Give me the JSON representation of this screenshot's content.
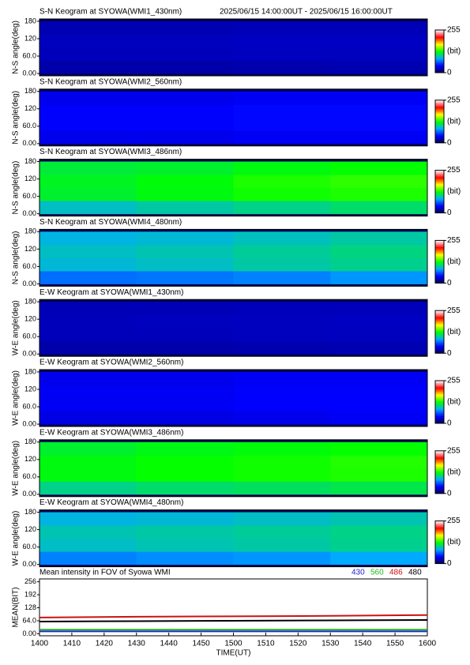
{
  "period": "2025/06/15 14:00:00UT - 2025/06/15 16:00:00UT",
  "chart_data": [
    {
      "type": "heatmap",
      "title": "S-N Keogram at SYOWA(WMI1_430nm)",
      "ylabel": "N-S angle(deg)",
      "xlim": [
        840,
        960
      ],
      "ylim": [
        -8,
        188
      ],
      "yticks": [
        {
          "value": 0,
          "label": "0.00"
        },
        {
          "value": 60,
          "label": "60.0"
        },
        120,
        180
      ],
      "xbins": [
        840,
        870,
        900,
        930,
        960
      ],
      "ybins": [
        0,
        45,
        90,
        135,
        180
      ],
      "values": [
        [
          22,
          22,
          23,
          24
        ],
        [
          26,
          26,
          27,
          27
        ],
        [
          27,
          27,
          28,
          28
        ],
        [
          24,
          24,
          25,
          25
        ]
      ],
      "colormap": [
        "#000050",
        "#0000ff",
        "#00aaff",
        "#00ff00",
        "#ffff00",
        "#ff0000",
        "#ffffff"
      ],
      "clim": [
        0,
        255
      ],
      "cticks": [
        0,
        255
      ],
      "clabel": "(bit)"
    },
    {
      "type": "heatmap",
      "title": "S-N Keogram at SYOWA(WMI2_560nm)",
      "ylabel": "N-S angle(deg)",
      "xlim": [
        840,
        960
      ],
      "ylim": [
        -8,
        188
      ],
      "yticks": [
        {
          "value": 0,
          "label": "0.00"
        },
        {
          "value": 60,
          "label": "60.0"
        },
        120,
        180
      ],
      "xbins": [
        840,
        870,
        900,
        930,
        960
      ],
      "ybins": [
        0,
        45,
        90,
        135,
        180
      ],
      "values": [
        [
          38,
          38,
          40,
          40
        ],
        [
          42,
          42,
          44,
          44
        ],
        [
          42,
          42,
          44,
          44
        ],
        [
          38,
          38,
          40,
          40
        ]
      ],
      "colormap": [
        "#000050",
        "#0000ff",
        "#00aaff",
        "#00ff00",
        "#ffff00",
        "#ff0000",
        "#ffffff"
      ],
      "clim": [
        0,
        255
      ],
      "cticks": [
        0,
        255
      ],
      "clabel": "(bit)"
    },
    {
      "type": "heatmap",
      "title": "S-N Keogram at SYOWA(WMI3_486nm)",
      "ylabel": "N-S angle(deg)",
      "xlim": [
        840,
        960
      ],
      "ylim": [
        -8,
        188
      ],
      "yticks": [
        {
          "value": 0,
          "label": "0.00"
        },
        {
          "value": 60,
          "label": "60.0"
        },
        120,
        180
      ],
      "xbins": [
        840,
        870,
        900,
        930,
        960
      ],
      "ybins": [
        0,
        45,
        90,
        135,
        180
      ],
      "values": [
        [
          95,
          100,
          105,
          110
        ],
        [
          120,
          125,
          130,
          132
        ],
        [
          122,
          126,
          132,
          135
        ],
        [
          118,
          120,
          125,
          128
        ]
      ],
      "colormap": [
        "#000050",
        "#0000ff",
        "#00aaff",
        "#00ff00",
        "#ffff00",
        "#ff0000",
        "#ffffff"
      ],
      "clim": [
        0,
        255
      ],
      "cticks": [
        0,
        255
      ],
      "clabel": "(bit)"
    },
    {
      "type": "heatmap",
      "title": "S-N Keogram at SYOWA(WMI4_480nm)",
      "ylabel": "N-S angle(deg)",
      "xlim": [
        840,
        960
      ],
      "ylim": [
        -8,
        188
      ],
      "yticks": [
        {
          "value": 0,
          "label": "0.00"
        },
        {
          "value": 60,
          "label": "60.0"
        },
        120,
        180
      ],
      "xbins": [
        840,
        870,
        900,
        930,
        960
      ],
      "ybins": [
        0,
        45,
        90,
        135,
        180
      ],
      "values": [
        [
          70,
          72,
          75,
          80
        ],
        [
          92,
          95,
          100,
          104
        ],
        [
          95,
          98,
          102,
          106
        ],
        [
          90,
          92,
          96,
          100
        ]
      ],
      "colormap": [
        "#000050",
        "#0000ff",
        "#00aaff",
        "#00ff00",
        "#ffff00",
        "#ff0000",
        "#ffffff"
      ],
      "clim": [
        0,
        255
      ],
      "cticks": [
        0,
        255
      ],
      "clabel": "(bit)"
    },
    {
      "type": "heatmap",
      "title": "E-W Keogram at SYOWA(WMI1_430nm)",
      "ylabel": "W-E angle(deg)",
      "xlim": [
        840,
        960
      ],
      "ylim": [
        -8,
        188
      ],
      "yticks": [
        {
          "value": 0,
          "label": "0.00"
        },
        {
          "value": 60,
          "label": "60.0"
        },
        120,
        180
      ],
      "xbins": [
        840,
        870,
        900,
        930,
        960
      ],
      "ybins": [
        0,
        45,
        90,
        135,
        180
      ],
      "values": [
        [
          22,
          22,
          23,
          24
        ],
        [
          26,
          26,
          27,
          27
        ],
        [
          26,
          27,
          27,
          28
        ],
        [
          25,
          25,
          26,
          26
        ]
      ],
      "colormap": [
        "#000050",
        "#0000ff",
        "#00aaff",
        "#00ff00",
        "#ffff00",
        "#ff0000",
        "#ffffff"
      ],
      "clim": [
        0,
        255
      ],
      "cticks": [
        0,
        255
      ],
      "clabel": "(bit)"
    },
    {
      "type": "heatmap",
      "title": "E-W Keogram at SYOWA(WMI2_560nm)",
      "ylabel": "W-E angle(deg)",
      "xlim": [
        840,
        960
      ],
      "ylim": [
        -8,
        188
      ],
      "yticks": [
        {
          "value": 0,
          "label": "0.00"
        },
        {
          "value": 60,
          "label": "60.0"
        },
        120,
        180
      ],
      "xbins": [
        840,
        870,
        900,
        930,
        960
      ],
      "ybins": [
        0,
        45,
        90,
        135,
        180
      ],
      "values": [
        [
          36,
          36,
          38,
          40
        ],
        [
          40,
          40,
          42,
          42
        ],
        [
          40,
          40,
          42,
          42
        ],
        [
          38,
          38,
          40,
          40
        ]
      ],
      "colormap": [
        "#000050",
        "#0000ff",
        "#00aaff",
        "#00ff00",
        "#ffff00",
        "#ff0000",
        "#ffffff"
      ],
      "clim": [
        0,
        255
      ],
      "cticks": [
        0,
        255
      ],
      "clabel": "(bit)"
    },
    {
      "type": "heatmap",
      "title": "E-W Keogram at SYOWA(WMI3_486nm)",
      "ylabel": "W-E angle(deg)",
      "xlim": [
        840,
        960
      ],
      "ylim": [
        -8,
        188
      ],
      "yticks": [
        {
          "value": 0,
          "label": "0.00"
        },
        {
          "value": 60,
          "label": "60.0"
        },
        120,
        180
      ],
      "xbins": [
        840,
        870,
        900,
        930,
        960
      ],
      "ybins": [
        0,
        45,
        90,
        135,
        180
      ],
      "values": [
        [
          105,
          110,
          112,
          115
        ],
        [
          125,
          128,
          130,
          132
        ],
        [
          125,
          128,
          130,
          133
        ],
        [
          120,
          124,
          126,
          128
        ]
      ],
      "colormap": [
        "#000050",
        "#0000ff",
        "#00aaff",
        "#00ff00",
        "#ffff00",
        "#ff0000",
        "#ffffff"
      ],
      "clim": [
        0,
        255
      ],
      "cticks": [
        0,
        255
      ],
      "clabel": "(bit)"
    },
    {
      "type": "heatmap",
      "title": "E-W Keogram at SYOWA(WMI4_480nm)",
      "ylabel": "W-E angle(deg)",
      "xlim": [
        840,
        960
      ],
      "ylim": [
        -8,
        188
      ],
      "yticks": [
        {
          "value": 0,
          "label": "0.00"
        },
        {
          "value": 60,
          "label": "60.0"
        },
        120,
        180
      ],
      "xbins": [
        840,
        870,
        900,
        930,
        960
      ],
      "ybins": [
        0,
        45,
        90,
        135,
        180
      ],
      "values": [
        [
          75,
          78,
          80,
          85
        ],
        [
          95,
          98,
          100,
          104
        ],
        [
          98,
          100,
          102,
          105
        ],
        [
          90,
          92,
          95,
          98
        ]
      ],
      "colormap": [
        "#000050",
        "#0000ff",
        "#00aaff",
        "#00ff00",
        "#ffff00",
        "#ff0000",
        "#ffffff"
      ],
      "clim": [
        0,
        255
      ],
      "cticks": [
        0,
        255
      ],
      "clabel": "(bit)"
    },
    {
      "type": "line",
      "title": "Mean intensity in FOV of Syowa WMI",
      "xlabel": "TIME(UT)",
      "ylabel": "MEAN(BIT)",
      "x": [
        840,
        870,
        900,
        930,
        960
      ],
      "xlim": [
        840,
        960
      ],
      "ylim": [
        -10,
        270
      ],
      "xticks": [
        {
          "value": 840,
          "label": "1400"
        },
        {
          "value": 850,
          "label": "1410"
        },
        {
          "value": 860,
          "label": "1420"
        },
        {
          "value": 870,
          "label": "1430"
        },
        {
          "value": 880,
          "label": "1440"
        },
        {
          "value": 890,
          "label": "1450"
        },
        {
          "value": 900,
          "label": "1500"
        },
        {
          "value": 910,
          "label": "1510"
        },
        {
          "value": 920,
          "label": "1520"
        },
        {
          "value": 930,
          "label": "1530"
        },
        {
          "value": 940,
          "label": "1540"
        },
        {
          "value": 950,
          "label": "1550"
        },
        {
          "value": 960,
          "label": "1600"
        }
      ],
      "yticks": [
        {
          "value": 0,
          "label": "0.00"
        },
        {
          "value": 64,
          "label": "64.0"
        },
        128,
        192,
        256
      ],
      "series": [
        {
          "name": "430",
          "color": "#2222cc",
          "values": [
            12,
            12,
            12,
            12,
            12
          ]
        },
        {
          "name": "560",
          "color": "#22bb22",
          "values": [
            20,
            20,
            20,
            20,
            20
          ]
        },
        {
          "name": "486",
          "color": "#cc1111",
          "values": [
            80,
            84,
            86,
            88,
            92
          ]
        },
        {
          "name": "480",
          "color": "#000000",
          "values": [
            60,
            62,
            64,
            66,
            68
          ]
        }
      ]
    }
  ]
}
